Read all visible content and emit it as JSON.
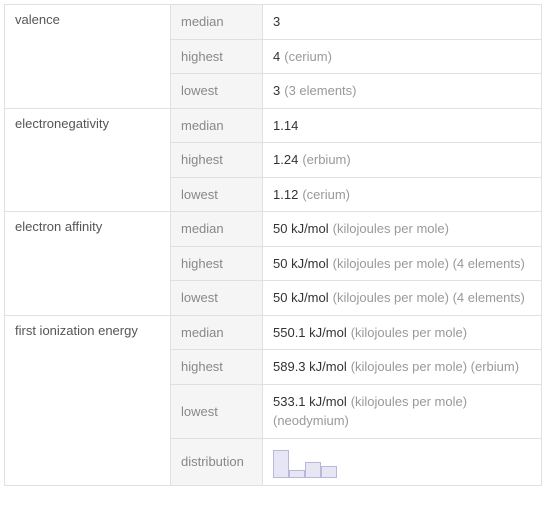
{
  "properties": [
    {
      "name": "valence",
      "rows": [
        {
          "stat": "median",
          "value": "3",
          "note": ""
        },
        {
          "stat": "highest",
          "value": "4",
          "note": "(cerium)"
        },
        {
          "stat": "lowest",
          "value": "3",
          "note": "(3 elements)"
        }
      ]
    },
    {
      "name": "electronegativity",
      "rows": [
        {
          "stat": "median",
          "value": "1.14",
          "note": ""
        },
        {
          "stat": "highest",
          "value": "1.24",
          "note": "(erbium)"
        },
        {
          "stat": "lowest",
          "value": "1.12",
          "note": "(cerium)"
        }
      ]
    },
    {
      "name": "electron affinity",
      "rows": [
        {
          "stat": "median",
          "value": "50 kJ/mol",
          "note": "(kilojoules per mole)"
        },
        {
          "stat": "highest",
          "value": "50 kJ/mol",
          "note": "(kilojoules per mole) (4 elements)"
        },
        {
          "stat": "lowest",
          "value": "50 kJ/mol",
          "note": "(kilojoules per mole) (4 elements)"
        }
      ]
    },
    {
      "name": "first ionization energy",
      "rows": [
        {
          "stat": "median",
          "value": "550.1 kJ/mol",
          "note": "(kilojoules per mole)"
        },
        {
          "stat": "highest",
          "value": "589.3 kJ/mol",
          "note": "(kilojoules per mole) (erbium)"
        },
        {
          "stat": "lowest",
          "value": "533.1 kJ/mol",
          "note": "(kilojoules per mole) (neodymium)"
        },
        {
          "stat": "distribution",
          "chart": true
        }
      ]
    }
  ],
  "chart": {
    "bars": [
      {
        "height": 28,
        "width": 16
      },
      {
        "height": 8,
        "width": 16
      },
      {
        "height": 16,
        "width": 16
      },
      {
        "height": 12,
        "width": 16
      }
    ],
    "bar_fill": "#e6e6f5",
    "bar_stroke": "#b8b8d8",
    "container_height": 32
  },
  "colors": {
    "border": "#e0e0e0",
    "stat_bg": "#f5f5f5",
    "property_text": "#555555",
    "stat_text": "#888888",
    "value_text": "#333333",
    "note_text": "#999999"
  }
}
